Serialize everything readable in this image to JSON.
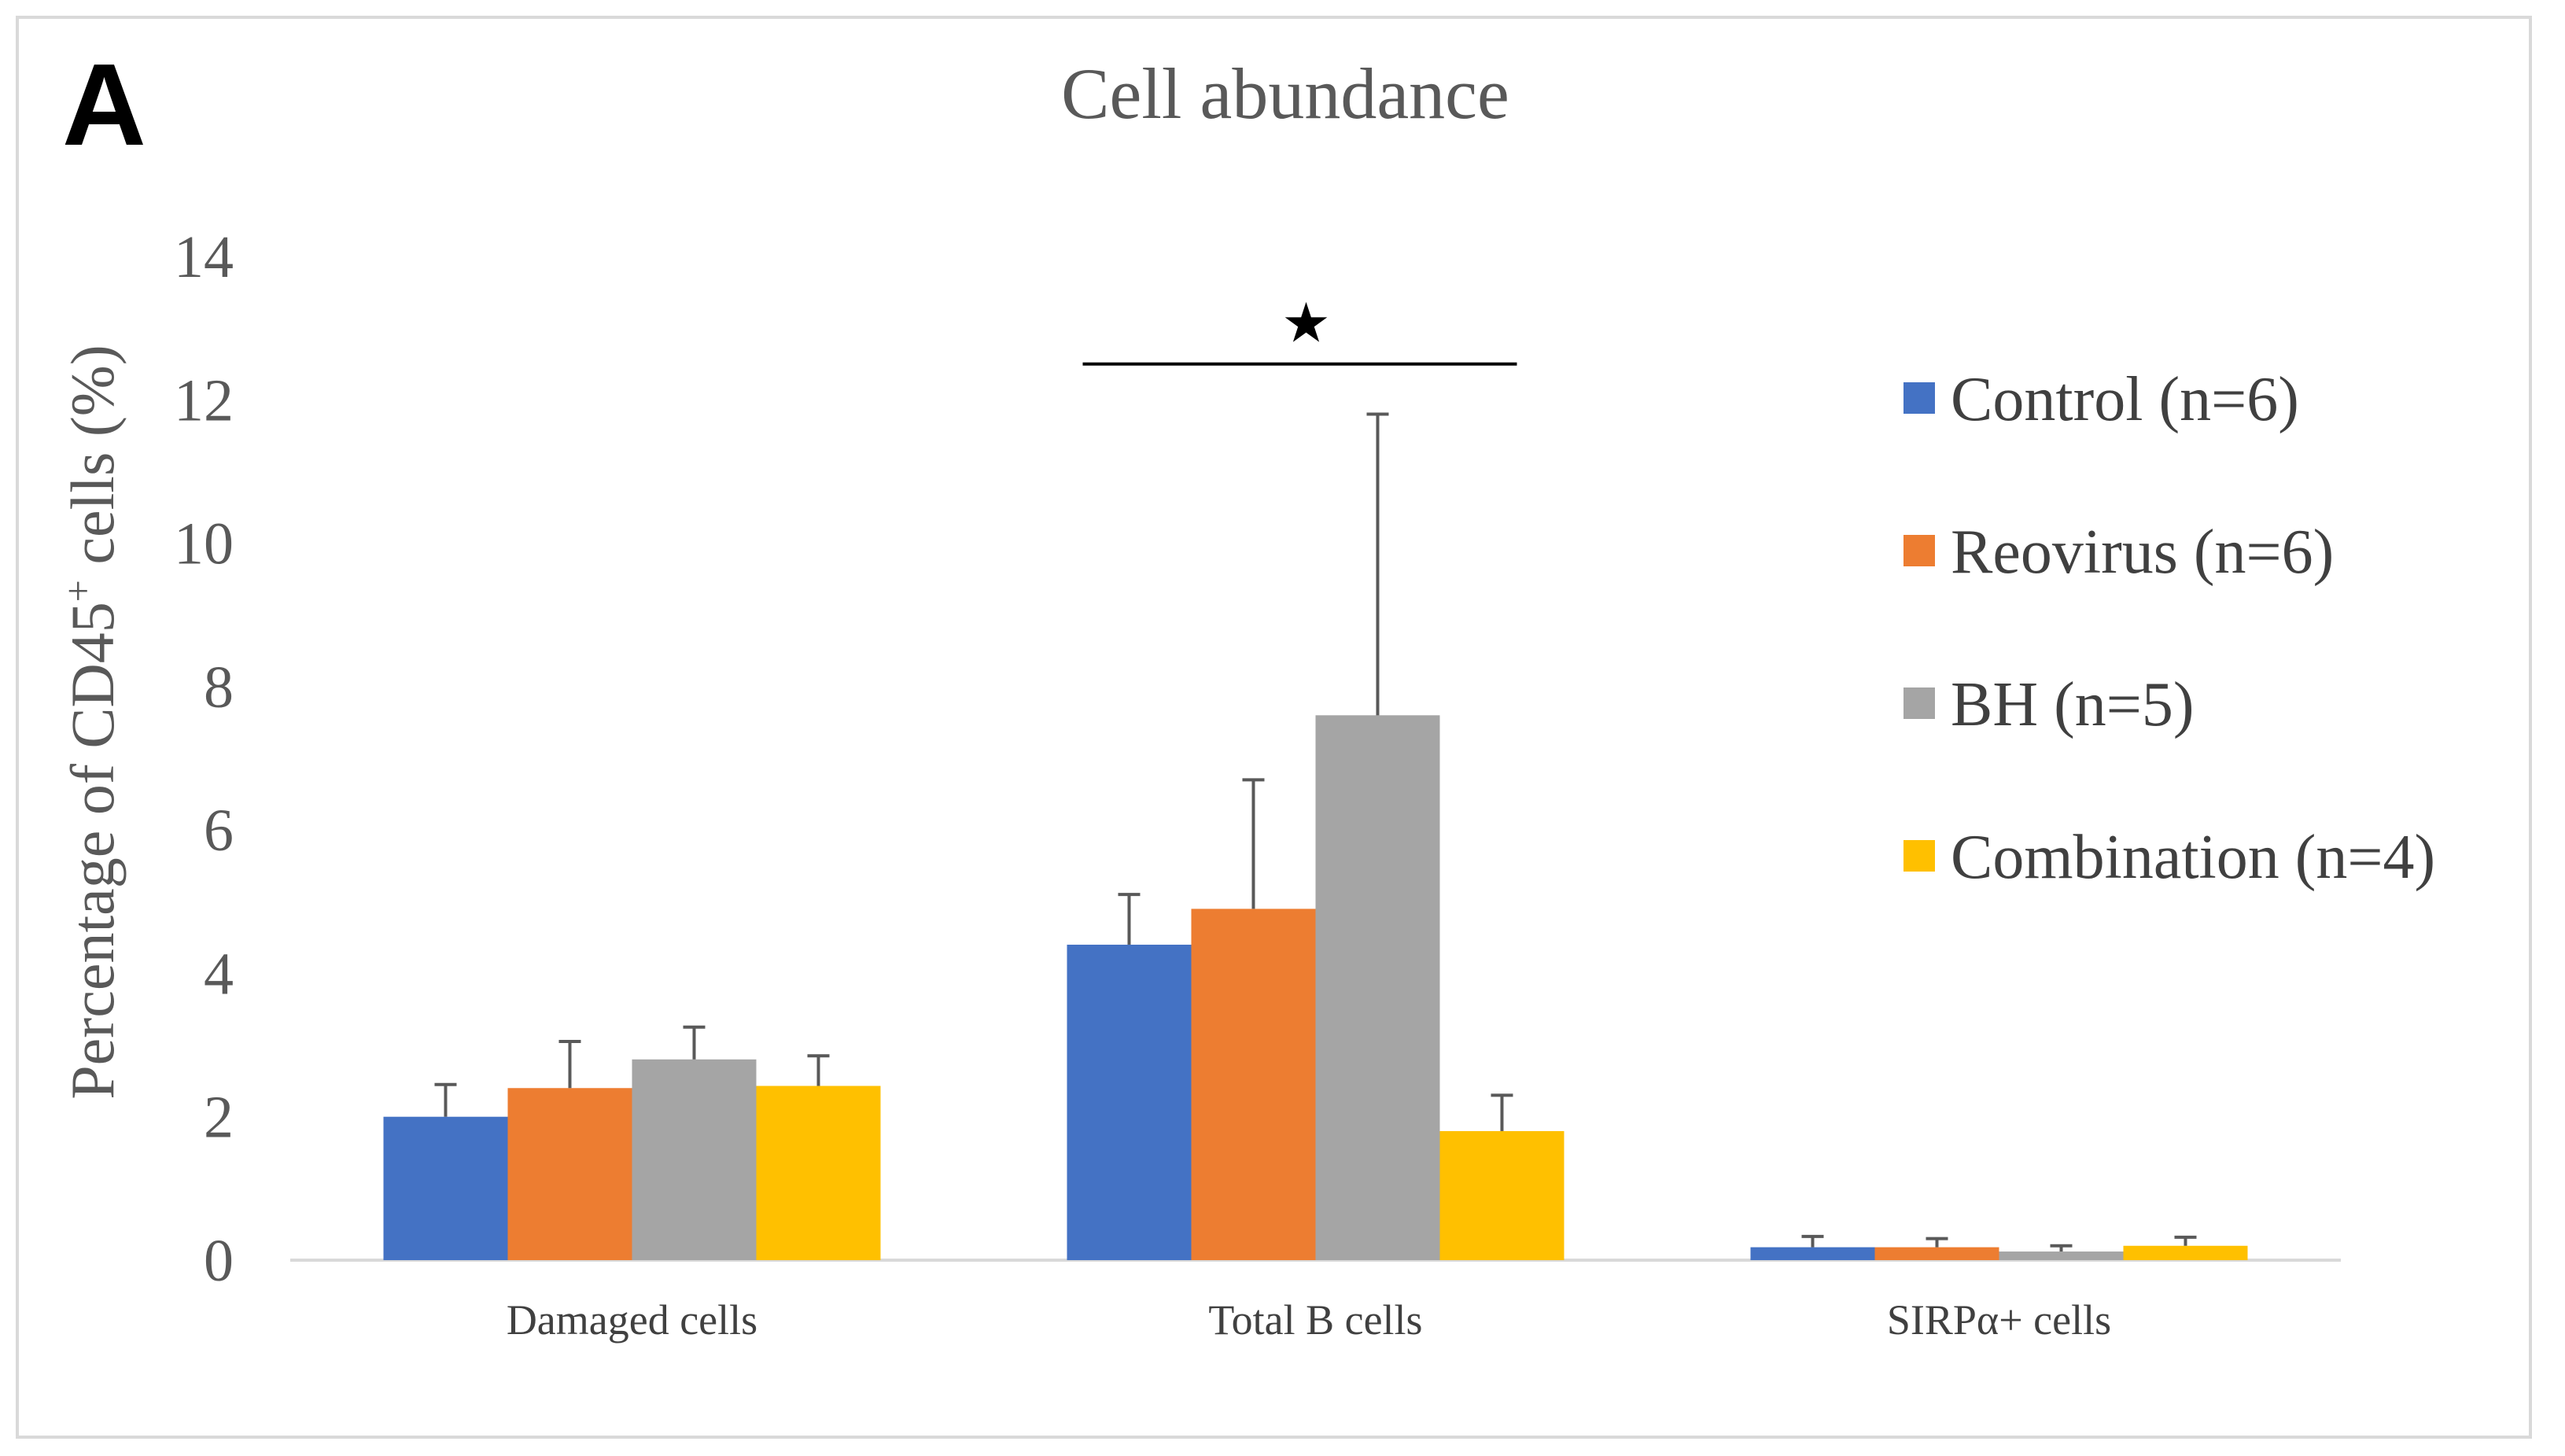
{
  "panel_label": "A",
  "chart_data": {
    "type": "bar",
    "title": "Cell abundance",
    "ylabel_prefix": "Percentage of CD45",
    "ylabel_superscript": "+",
    "ylabel_suffix": " cells (%)",
    "xlabel": "",
    "ylim": [
      0,
      14
    ],
    "yticks": [
      0,
      2,
      4,
      6,
      8,
      10,
      12,
      14
    ],
    "grid": false,
    "legend_position": "right",
    "categories": [
      "Damaged cells",
      "Total B cells",
      "SIRPα+ cells"
    ],
    "series": [
      {
        "name": "Control (n=6)",
        "color": "#4472c4",
        "values": [
          2.0,
          4.4,
          0.18
        ],
        "errors": [
          0.45,
          0.7,
          0.15
        ]
      },
      {
        "name": "Reovirus (n=6)",
        "color": "#ed7d31",
        "values": [
          2.4,
          4.9,
          0.18
        ],
        "errors": [
          0.65,
          1.8,
          0.12
        ]
      },
      {
        "name": "BH (n=5)",
        "color": "#a5a5a5",
        "values": [
          2.8,
          7.6,
          0.12
        ],
        "errors": [
          0.45,
          4.2,
          0.08
        ]
      },
      {
        "name": "Combination (n=4)",
        "color": "#ffc000",
        "values": [
          2.43,
          1.8,
          0.2
        ],
        "errors": [
          0.42,
          0.5,
          0.12
        ]
      }
    ],
    "annotations": [
      {
        "type": "significance",
        "symbol": "★",
        "category": "Total B cells",
        "from_series": 0,
        "to_series": 3,
        "y": 12.5
      }
    ]
  }
}
